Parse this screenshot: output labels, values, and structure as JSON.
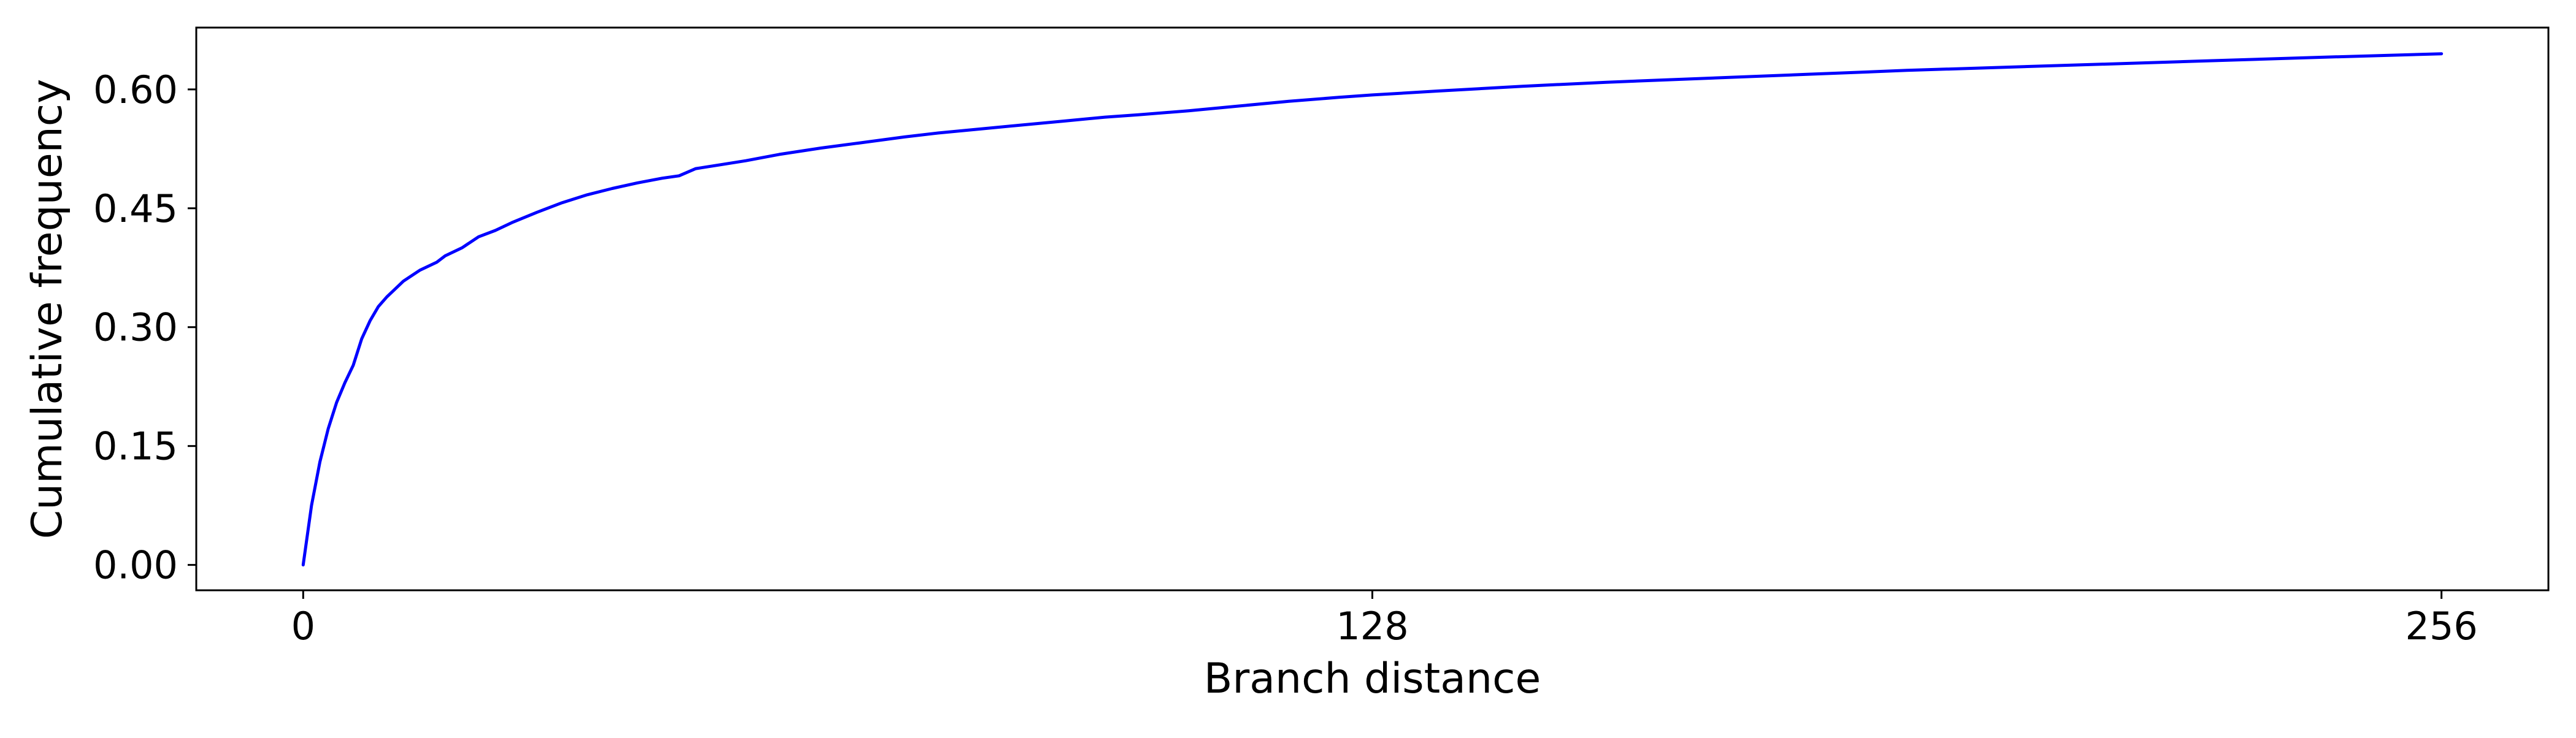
{
  "chart_data": {
    "type": "line",
    "title": "",
    "xlabel": "Branch distance",
    "ylabel": "Cumulative frequency",
    "xlim": [
      -12.8,
      268.8
    ],
    "ylim": [
      -0.032,
      0.678
    ],
    "x_ticks": [
      0,
      128,
      256
    ],
    "x_tick_labels": [
      "0",
      "128",
      "256"
    ],
    "y_ticks": [
      0.0,
      0.15,
      0.3,
      0.45,
      0.6
    ],
    "y_tick_labels": [
      "0.00",
      "0.15",
      "0.30",
      "0.45",
      "0.60"
    ],
    "grid": false,
    "legend": "none",
    "series": [
      {
        "color": "#0000ff",
        "points": [
          [
            0,
            0.0
          ],
          [
            1,
            0.075
          ],
          [
            2,
            0.13
          ],
          [
            3,
            0.172
          ],
          [
            4,
            0.205
          ],
          [
            5,
            0.23
          ],
          [
            6,
            0.252
          ],
          [
            7,
            0.285
          ],
          [
            8,
            0.308
          ],
          [
            9,
            0.326
          ],
          [
            10,
            0.338
          ],
          [
            12,
            0.358
          ],
          [
            14,
            0.372
          ],
          [
            16,
            0.382
          ],
          [
            17,
            0.39
          ],
          [
            19,
            0.4
          ],
          [
            21,
            0.414
          ],
          [
            23,
            0.422
          ],
          [
            25,
            0.432
          ],
          [
            28,
            0.445
          ],
          [
            31,
            0.457
          ],
          [
            34,
            0.467
          ],
          [
            37,
            0.475
          ],
          [
            40,
            0.482
          ],
          [
            43,
            0.488
          ],
          [
            45,
            0.491
          ],
          [
            47,
            0.5
          ],
          [
            50,
            0.505
          ],
          [
            53,
            0.51
          ],
          [
            57,
            0.518
          ],
          [
            62,
            0.526
          ],
          [
            67,
            0.533
          ],
          [
            72,
            0.54
          ],
          [
            76,
            0.545
          ],
          [
            81,
            0.55
          ],
          [
            86,
            0.555
          ],
          [
            91,
            0.56
          ],
          [
            96,
            0.565
          ],
          [
            100,
            0.568
          ],
          [
            106,
            0.573
          ],
          [
            112,
            0.579
          ],
          [
            118,
            0.585
          ],
          [
            124,
            0.59
          ],
          [
            128,
            0.593
          ],
          [
            136,
            0.598
          ],
          [
            146,
            0.604
          ],
          [
            156,
            0.609
          ],
          [
            168,
            0.614
          ],
          [
            180,
            0.619
          ],
          [
            192,
            0.624
          ],
          [
            204,
            0.628
          ],
          [
            216,
            0.632
          ],
          [
            228,
            0.636
          ],
          [
            240,
            0.64
          ],
          [
            256,
            0.645
          ]
        ]
      }
    ]
  }
}
